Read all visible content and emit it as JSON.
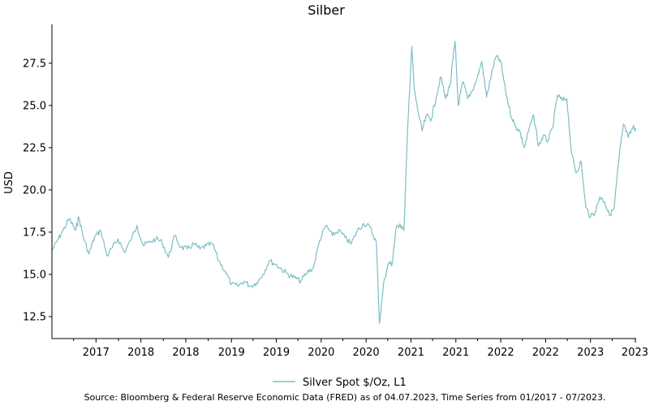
{
  "chart_data": {
    "type": "line",
    "title": "Silber",
    "xlabel": "",
    "ylabel": "USD",
    "xlim": [
      2016.08,
      2023.5
    ],
    "ylim": [
      11.2,
      29.8
    ],
    "grid": false,
    "legend_position": "bottom-center",
    "y_ticks": [
      12.5,
      15.0,
      17.5,
      20.0,
      22.5,
      25.0,
      27.5
    ],
    "y_tick_labels": [
      "12.5",
      "15.0",
      "17.5",
      "20.0",
      "22.5",
      "25.0",
      "27.5"
    ],
    "x_ticks": [
      2016.64,
      2017.21,
      2017.78,
      2018.36,
      2018.93,
      2019.5,
      2020.07,
      2020.64,
      2021.21,
      2021.78,
      2022.35,
      2022.92,
      2023.49
    ],
    "x_tick_labels": [
      "2017",
      "2018",
      "2018",
      "2019",
      "2019",
      "2020",
      "2020",
      "2021",
      "2021",
      "2022",
      "2022",
      "2023",
      "2023"
    ],
    "series": [
      {
        "name": "Silver Spot  $/Oz, L1",
        "color": "#7bbfc4",
        "x": [
          2016.08,
          2016.15,
          2016.22,
          2016.3,
          2016.38,
          2016.42,
          2016.48,
          2016.55,
          2016.62,
          2016.7,
          2016.78,
          2016.85,
          2016.92,
          2017.0,
          2017.08,
          2017.16,
          2017.24,
          2017.32,
          2017.4,
          2017.48,
          2017.56,
          2017.64,
          2017.72,
          2017.8,
          2017.88,
          2017.96,
          2018.04,
          2018.12,
          2018.2,
          2018.28,
          2018.36,
          2018.44,
          2018.52,
          2018.6,
          2018.68,
          2018.76,
          2018.84,
          2018.92,
          2019.0,
          2019.08,
          2019.16,
          2019.24,
          2019.32,
          2019.4,
          2019.48,
          2019.56,
          2019.64,
          2019.72,
          2019.8,
          2019.88,
          2019.96,
          2020.04,
          2020.12,
          2020.2,
          2020.24,
          2020.3,
          2020.36,
          2020.4,
          2020.45,
          2020.5,
          2020.55,
          2020.6,
          2020.65,
          2020.68,
          2020.72,
          2020.78,
          2020.84,
          2020.9,
          2020.96,
          2021.02,
          2021.08,
          2021.14,
          2021.2,
          2021.24,
          2021.3,
          2021.36,
          2021.42,
          2021.48,
          2021.54,
          2021.6,
          2021.66,
          2021.72,
          2021.78,
          2021.84,
          2021.9,
          2021.96,
          2022.02,
          2022.08,
          2022.14,
          2022.2,
          2022.26,
          2022.32,
          2022.38,
          2022.44,
          2022.5,
          2022.56,
          2022.62,
          2022.68,
          2022.74,
          2022.8,
          2022.86,
          2022.92,
          2022.98,
          2023.04,
          2023.1,
          2023.16,
          2023.22,
          2023.28,
          2023.34,
          2023.4,
          2023.46,
          2023.5
        ],
        "y": [
          16.4,
          17.0,
          17.6,
          18.3,
          17.6,
          18.4,
          17.2,
          16.2,
          17.2,
          17.6,
          16.1,
          16.6,
          17.1,
          16.3,
          17.0,
          17.9,
          16.7,
          16.9,
          17.1,
          16.9,
          16.0,
          17.3,
          16.6,
          16.5,
          16.8,
          16.5,
          16.7,
          16.8,
          15.8,
          15.2,
          14.4,
          14.3,
          14.6,
          14.3,
          14.5,
          15.0,
          15.8,
          15.6,
          15.3,
          15.0,
          14.8,
          14.6,
          15.1,
          15.4,
          17.0,
          17.9,
          17.3,
          17.6,
          17.2,
          16.8,
          17.6,
          18.0,
          17.8,
          16.9,
          12.1,
          14.7,
          15.7,
          15.6,
          17.7,
          18.0,
          17.6,
          23.8,
          28.5,
          26.0,
          24.9,
          23.5,
          24.4,
          24.2,
          25.5,
          26.7,
          25.4,
          26.3,
          28.8,
          25.0,
          26.4,
          25.4,
          25.9,
          26.6,
          27.6,
          25.5,
          26.8,
          27.9,
          27.6,
          25.9,
          24.6,
          23.8,
          23.5,
          22.5,
          23.6,
          24.4,
          22.6,
          23.2,
          22.9,
          23.7,
          25.6,
          25.3,
          25.4,
          22.1,
          21.0,
          21.7,
          19.0,
          18.4,
          18.7,
          19.6,
          19.3,
          18.5,
          18.9,
          21.8,
          23.9,
          23.1,
          23.7,
          23.6
        ]
      }
    ]
  },
  "source_text": "Source: Bloomberg & Federal Reserve Economic Data (FRED) as of 04.07.2023, Time Series from 01/2017 - 07/2023."
}
